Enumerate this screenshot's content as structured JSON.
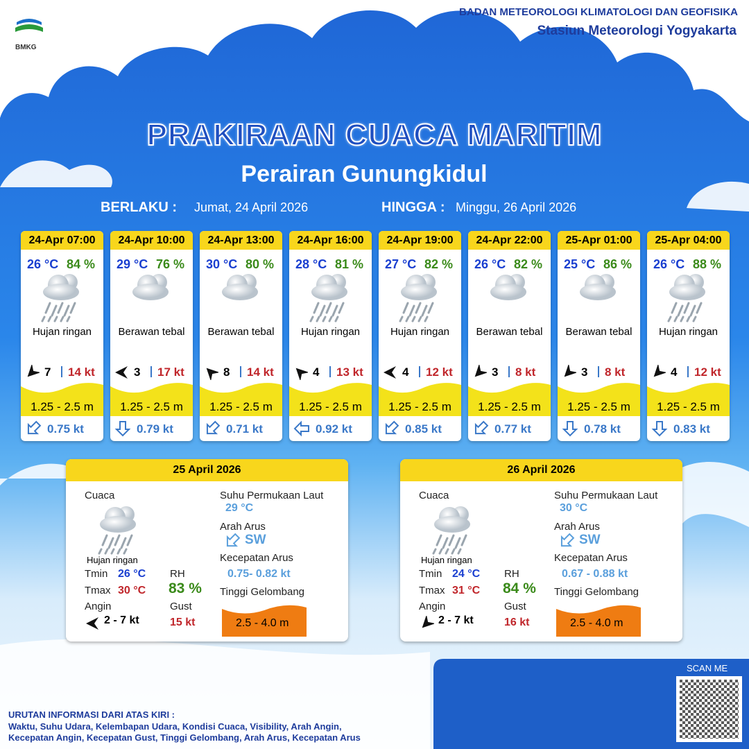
{
  "header": {
    "logo": "BMKG",
    "org": "BADAN METEOROLOGI KLIMATOLOGI DAN GEOFISIKA",
    "station": "Stasiun Meteorologi Yogyakarta"
  },
  "title": "PRAKIRAAN CUACA MARITIM",
  "subtitle": "Perairan Gunungkidul",
  "validity": {
    "from_label": "BERLAKU :",
    "from": "Jumat, 24 April 2026",
    "to_label": "HINGGA :",
    "to": "Minggu, 26 April 2026"
  },
  "cards": [
    {
      "time": "24-Apr 07:00",
      "temp": "26 °C",
      "rh": "84 %",
      "icon": "rain",
      "condition": "Hujan ringan",
      "wind_dir": 225,
      "wind": "7",
      "gust": "14 kt",
      "wave": "1.25 - 2.5 m",
      "current_dir": 225,
      "current": "0.75 kt"
    },
    {
      "time": "24-Apr 10:00",
      "temp": "29 °C",
      "rh": "76 %",
      "icon": "cloud",
      "condition": "Berawan tebal",
      "wind_dir": 270,
      "wind": "3",
      "gust": "17 kt",
      "wave": "1.25 - 2.5 m",
      "current_dir": 180,
      "current": "0.79 kt"
    },
    {
      "time": "24-Apr 13:00",
      "temp": "30 °C",
      "rh": "80 %",
      "icon": "cloud",
      "condition": "Berawan tebal",
      "wind_dir": 315,
      "wind": "8",
      "gust": "14 kt",
      "wave": "1.25 - 2.5 m",
      "current_dir": 225,
      "current": "0.71 kt"
    },
    {
      "time": "24-Apr 16:00",
      "temp": "28 °C",
      "rh": "81 %",
      "icon": "rain",
      "condition": "Hujan ringan",
      "wind_dir": 315,
      "wind": "4",
      "gust": "13 kt",
      "wave": "1.25 - 2.5 m",
      "current_dir": 270,
      "current": "0.92 kt"
    },
    {
      "time": "24-Apr 19:00",
      "temp": "27 °C",
      "rh": "82 %",
      "icon": "rain",
      "condition": "Hujan ringan",
      "wind_dir": 270,
      "wind": "4",
      "gust": "12 kt",
      "wave": "1.25 - 2.5 m",
      "current_dir": 225,
      "current": "0.85 kt"
    },
    {
      "time": "24-Apr 22:00",
      "temp": "26 °C",
      "rh": "82 %",
      "icon": "cloud",
      "condition": "Berawan tebal",
      "wind_dir": 225,
      "wind": "3",
      "gust": "8 kt",
      "wave": "1.25 - 2.5 m",
      "current_dir": 225,
      "current": "0.77 kt"
    },
    {
      "time": "25-Apr 01:00",
      "temp": "25 °C",
      "rh": "86 %",
      "icon": "cloud",
      "condition": "Berawan tebal",
      "wind_dir": 225,
      "wind": "3",
      "gust": "8 kt",
      "wave": "1.25 - 2.5 m",
      "current_dir": 180,
      "current": "0.78 kt"
    },
    {
      "time": "25-Apr 04:00",
      "temp": "26 °C",
      "rh": "88 %",
      "icon": "rain",
      "condition": "Hujan ringan",
      "wind_dir": 225,
      "wind": "4",
      "gust": "12 kt",
      "wave": "1.25 - 2.5 m",
      "current_dir": 180,
      "current": "0.83 kt"
    }
  ],
  "daily_labels": {
    "weather": "Cuaca",
    "tmin": "Tmin",
    "tmax": "Tmax",
    "wind": "Angin",
    "rh": "RH",
    "gust": "Gust",
    "sst": "Suhu Permukaan Laut",
    "current_dir": "Arah Arus",
    "current_speed": "Kecepatan Arus",
    "wave": "Tinggi Gelombang"
  },
  "daily": [
    {
      "date": "25 April 2026",
      "icon": "rain",
      "condition": "Hujan ringan",
      "tmin": "26 °C",
      "tmax": "30 °C",
      "rh": "83 %",
      "wind_dir": 270,
      "wind": "2 - 7 kt",
      "gust": "15 kt",
      "sst": "29 °C",
      "current_arrow": 225,
      "current_dir": "SW",
      "current_speed": "0.75- 0.82 kt",
      "wave": "2.5 - 4.0 m"
    },
    {
      "date": "26 April 2026",
      "icon": "rain",
      "condition": "Hujan ringan",
      "tmin": "24 °C",
      "tmax": "31 °C",
      "rh": "84 %",
      "wind_dir": 225,
      "wind": "2 - 7 kt",
      "gust": "16 kt",
      "sst": "30 °C",
      "current_arrow": 225,
      "current_dir": "SW",
      "current_speed": "0.67 - 0.88 kt",
      "wave": "2.5 - 4.0 m"
    }
  ],
  "footer": {
    "scan": "SCAN ME",
    "note_title": "URUTAN INFORMASI DARI ATAS KIRI :",
    "note_lines": [
      "Waktu, Suhu Udara, Kelembapan Udara, Kondisi Cuaca, Visibility, Arah Angin,",
      "Kecepatan Angin, Kecepatan Gust, Tinggi Gelombang, Arah Arus, Kecepatan Arus"
    ]
  }
}
